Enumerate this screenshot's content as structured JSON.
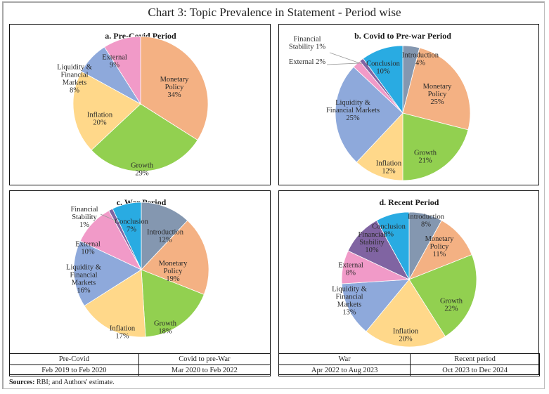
{
  "title": "Chart 3: Topic Prevalence in Statement - Period wise",
  "colors": {
    "Introduction": "#8497b0",
    "Monetary Policy": "#f4b183",
    "Growth": "#92d050",
    "Inflation": "#ffd88a",
    "Liquidity & Financial Markets": "#8ea9db",
    "External": "#f19ac8",
    "Financial Stability": "#8064a2",
    "Conclusion": "#29abe2"
  },
  "chart_data": [
    {
      "type": "pie",
      "title": "a. Pre-Covid Period",
      "categories": [
        "Monetary Policy",
        "Growth",
        "Inflation",
        "Liquidity & Financial Markets",
        "External"
      ],
      "values": [
        34,
        29,
        20,
        8,
        9
      ],
      "labels": [
        [
          "Monetary",
          "Policy",
          "34%"
        ],
        [
          "Growth",
          "29%"
        ],
        [
          "Inflation",
          "20%"
        ],
        [
          "Liquidity &",
          "Financial",
          "Markets",
          "8%"
        ],
        [
          "External",
          "9%"
        ]
      ]
    },
    {
      "type": "pie",
      "title": "b. Covid to Pre-war Period",
      "categories": [
        "Introduction",
        "Monetary Policy",
        "Growth",
        "Inflation",
        "Liquidity & Financial Markets",
        "External",
        "Financial Stability",
        "Conclusion"
      ],
      "values": [
        4,
        25,
        21,
        12,
        25,
        2,
        1,
        10
      ],
      "labels": [
        [
          "Introduction",
          "4%"
        ],
        [
          "Monetary",
          "Policy",
          "25%"
        ],
        [
          "Growth",
          "21%"
        ],
        [
          "Inflation",
          "12%"
        ],
        [
          "Liquidity &",
          "Financial Markets",
          "25%"
        ],
        [
          "External 2%"
        ],
        [
          "Financial",
          "Stability 1%"
        ],
        [
          "Conclusion",
          "10%"
        ]
      ]
    },
    {
      "type": "pie",
      "title": "c. War Period",
      "categories": [
        "Introduction",
        "Monetary Policy",
        "Growth",
        "Inflation",
        "Liquidity & Financial Markets",
        "External",
        "Financial Stability",
        "Conclusion"
      ],
      "values": [
        12,
        19,
        18,
        17,
        16,
        10,
        1,
        7
      ],
      "labels": [
        [
          "Introduction",
          "12%"
        ],
        [
          "Monetary",
          "Policy",
          "19%"
        ],
        [
          "Growth",
          "18%"
        ],
        [
          "Inflation",
          "17%"
        ],
        [
          "Liquidity &",
          "Financial",
          "Markets",
          "16%"
        ],
        [
          "External",
          "10%"
        ],
        [
          "Financial",
          "Stability",
          "1%"
        ],
        [
          "Conclusion",
          "7%"
        ]
      ]
    },
    {
      "type": "pie",
      "title": "d. Recent Period",
      "categories": [
        "Introduction",
        "Monetary Policy",
        "Growth",
        "Inflation",
        "Liquidity & Financial Markets",
        "External",
        "Financial Stability",
        "Conclusion"
      ],
      "values": [
        8,
        11,
        22,
        20,
        13,
        8,
        10,
        8
      ],
      "labels": [
        [
          "Introduction",
          "8%"
        ],
        [
          "Monetary",
          "Policy",
          "11%"
        ],
        [
          "Growth",
          "22%"
        ],
        [
          "Inflation",
          "20%"
        ],
        [
          "Liquidity &",
          "Financial",
          "Markets",
          "13%"
        ],
        [
          "External",
          "8%"
        ],
        [
          "Financial",
          "Stability",
          "10%"
        ],
        [
          "Conclusion",
          "8%"
        ]
      ]
    }
  ],
  "period_table": [
    {
      "name": "Pre-Covid",
      "range": "Feb 2019 to Feb 2020"
    },
    {
      "name": "Covid to pre-War",
      "range": "Mar 2020 to Feb 2022"
    },
    {
      "name": "War",
      "range": "Apr 2022 to Aug 2023"
    },
    {
      "name": "Recent period",
      "range": "Oct 2023 to Dec 2024"
    }
  ],
  "sources": {
    "label": "Sources:",
    "text": " RBI; and Authors' estimate."
  }
}
